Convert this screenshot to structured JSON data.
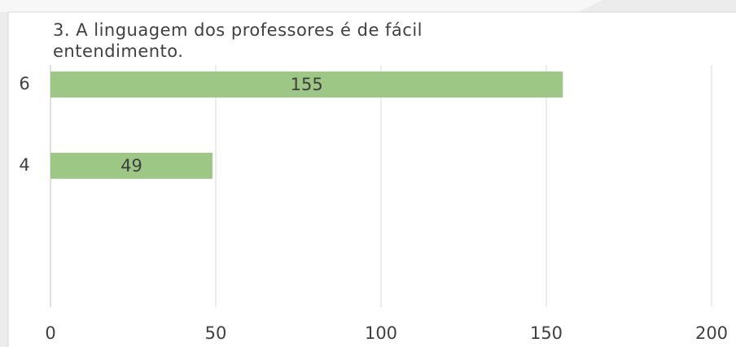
{
  "chart_data": {
    "type": "barh",
    "title": "3. A linguagem dos professores é de fácil entendimento.",
    "categories": [
      "6",
      "4"
    ],
    "values": [
      155,
      49
    ],
    "color": "#9dc784",
    "xlim": [
      0,
      200
    ],
    "xticks": [
      0,
      50,
      100,
      150,
      200
    ],
    "grid": true
  }
}
